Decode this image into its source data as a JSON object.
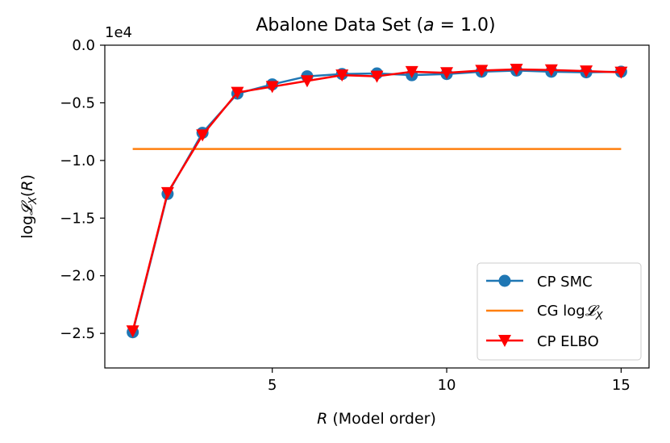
{
  "chart_data": {
    "type": "line",
    "title": "Abalone Data Set (a = 1.0)",
    "title_parts": {
      "prefix": "Abalone Data Set (",
      "var": "a",
      "eq": " = 1.0)"
    },
    "xlabel": "R (Model order)",
    "xlabel_parts": {
      "var": "R",
      "rest": " (Model order)"
    },
    "ylabel": "log𝓛X(R)",
    "ylabel_parts": {
      "log": "log",
      "L": "𝓛",
      "sub": "X",
      "open": "(",
      "var": "R",
      "close": ")"
    },
    "y_offset_label": "1e4",
    "xlim": [
      0.2,
      15.8
    ],
    "ylim": [
      -2.8,
      0.0
    ],
    "xticks": [
      5,
      10,
      15
    ],
    "xtick_labels": [
      "5",
      "10",
      "15"
    ],
    "yticks": [
      0.0,
      -0.5,
      -1.0,
      -1.5,
      -2.0,
      -2.5
    ],
    "ytick_labels": [
      "0.0",
      "−0.5",
      "−1.0",
      "−1.5",
      "−2.0",
      "−2.5"
    ],
    "grid": false,
    "legend_position": "bottom-right",
    "series": [
      {
        "name": "CP SMC",
        "color": "#1f77b4",
        "marker": "circle",
        "x": [
          1,
          2,
          3,
          4,
          5,
          6,
          7,
          8,
          9,
          10,
          11,
          12,
          13,
          14,
          15
        ],
        "values": [
          -2.49,
          -1.29,
          -0.76,
          -0.42,
          -0.34,
          -0.27,
          -0.25,
          -0.245,
          -0.26,
          -0.25,
          -0.23,
          -0.22,
          -0.23,
          -0.235,
          -0.23
        ]
      },
      {
        "name": "CG log𝓛X",
        "legend_parts": {
          "text": "CG log",
          "L": "𝓛",
          "sub": "X"
        },
        "color": "#ff7f0e",
        "marker": "none",
        "x": [
          1,
          15
        ],
        "values": [
          -0.9,
          -0.9
        ]
      },
      {
        "name": "CP ELBO",
        "color": "#ff0000",
        "marker": "triangle-down",
        "x": [
          1,
          2,
          3,
          4,
          5,
          6,
          7,
          8,
          9,
          10,
          11,
          12,
          13,
          14,
          15
        ],
        "values": [
          -2.48,
          -1.28,
          -0.78,
          -0.41,
          -0.36,
          -0.31,
          -0.26,
          -0.27,
          -0.23,
          -0.24,
          -0.22,
          -0.21,
          -0.215,
          -0.225,
          -0.235
        ]
      }
    ]
  }
}
